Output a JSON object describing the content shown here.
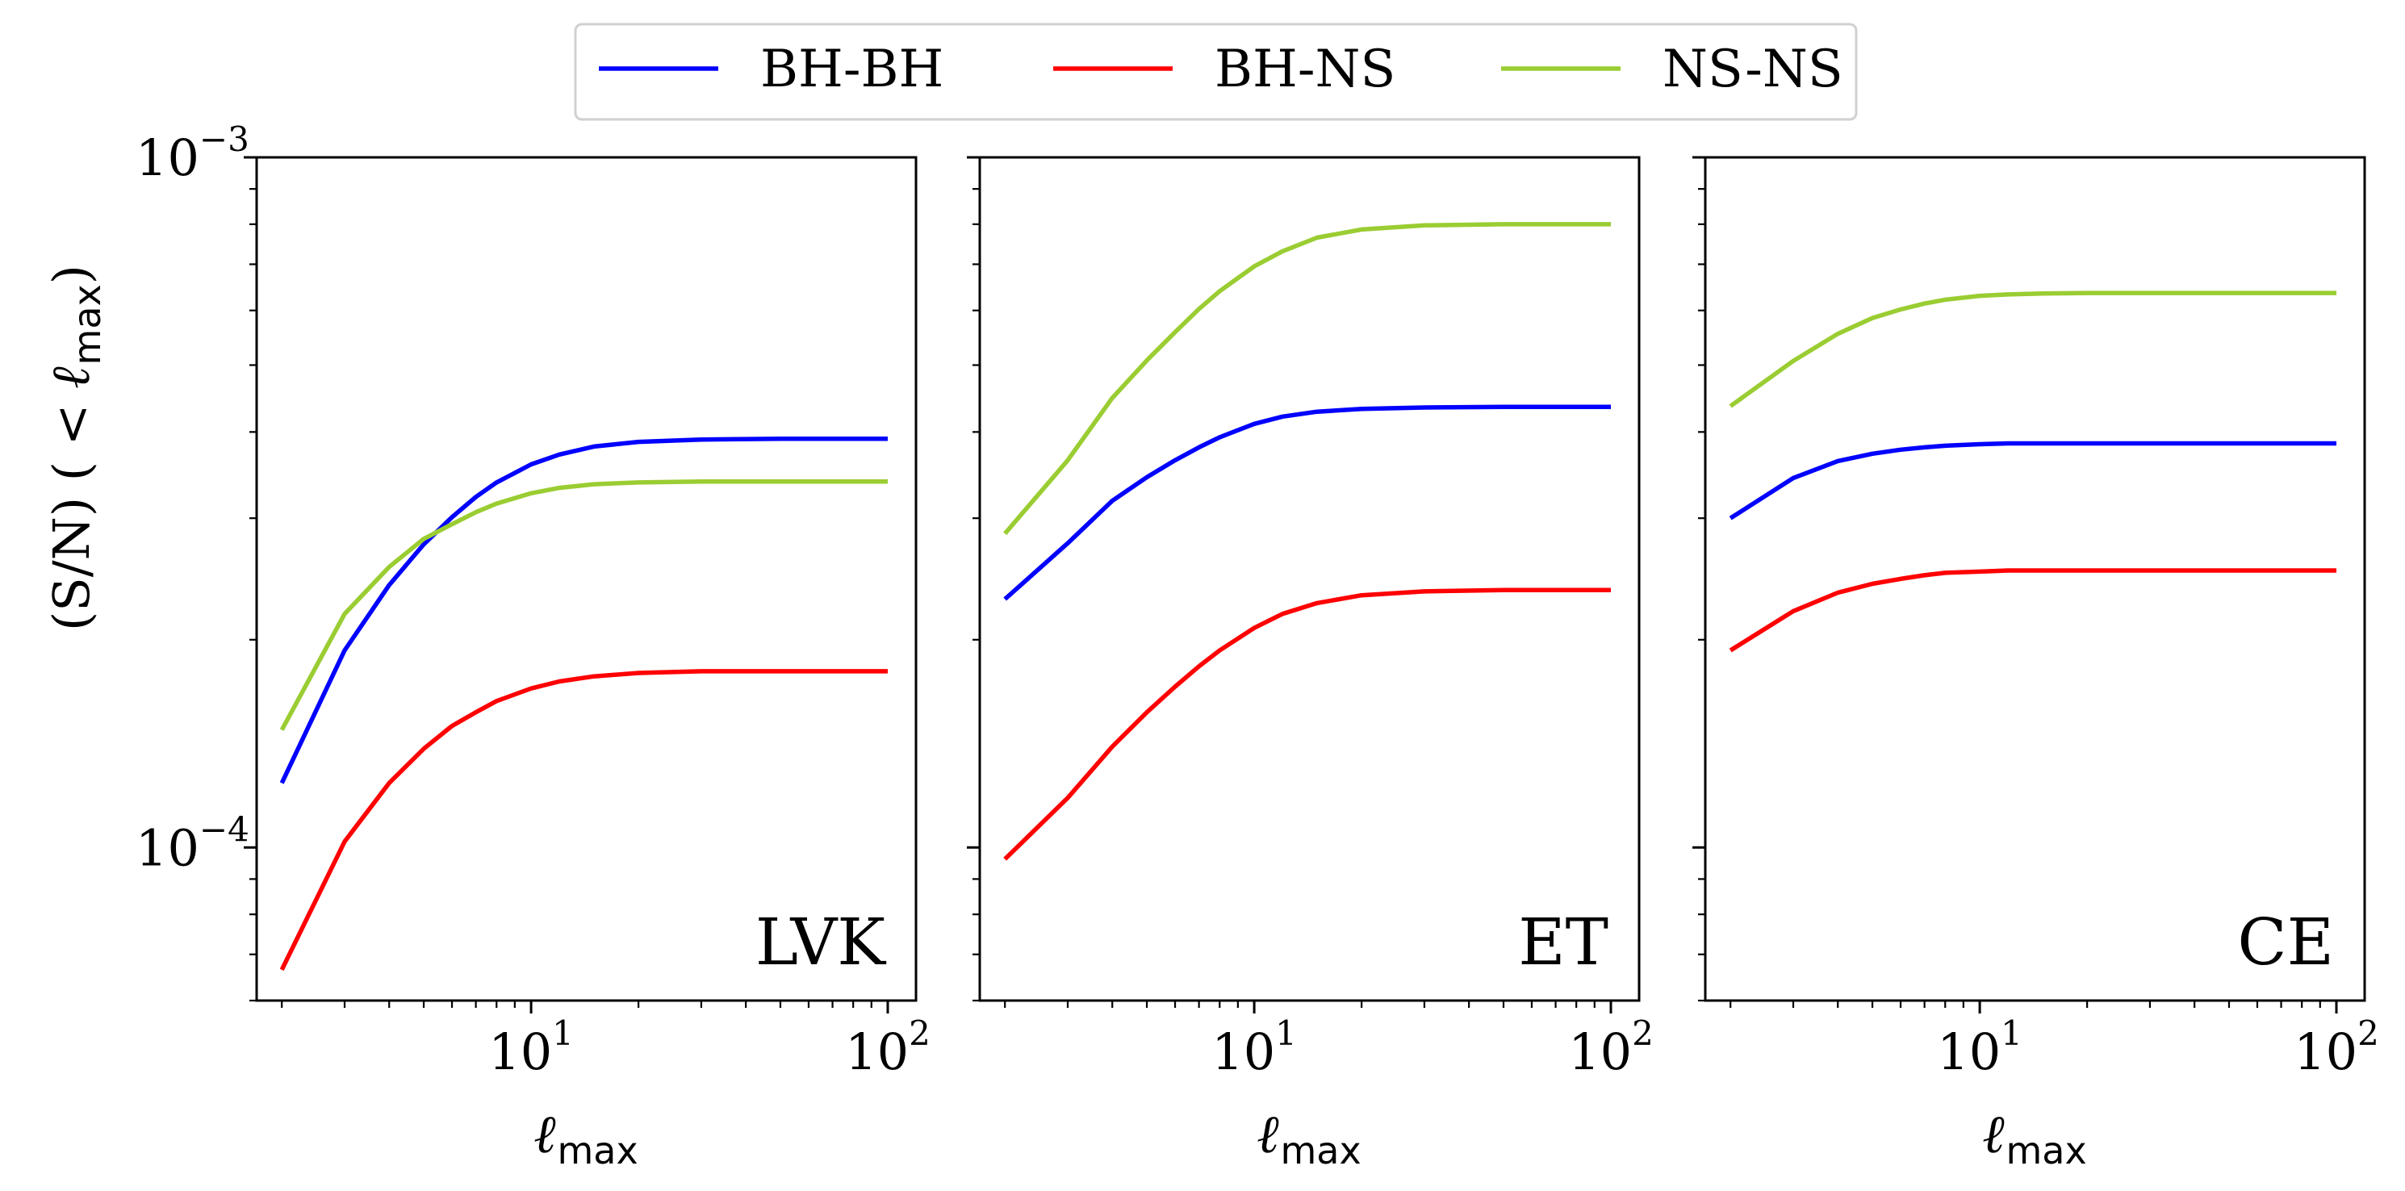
{
  "chart_data": [
    {
      "type": "line",
      "panel_label": "LVK",
      "xscale": "log",
      "yscale": "log",
      "xlim": [
        1.7,
        120
      ],
      "ylim": [
        6e-05,
        0.001
      ],
      "xlabel": "max",
      "ylabel": "(S/N) ( < max)",
      "x": [
        2,
        3,
        4,
        5,
        6,
        7,
        8,
        10,
        12,
        15,
        20,
        30,
        50,
        100
      ],
      "series": [
        {
          "name": "BH-BH",
          "color": "#0000ff",
          "values": [
            0.000124,
            0.000193,
            0.00024,
            0.000275,
            0.000301,
            0.000322,
            0.000338,
            0.000359,
            0.000371,
            0.000381,
            0.000387,
            0.00039,
            0.000391,
            0.000391
          ]
        },
        {
          "name": "BH-NS",
          "color": "#ff0000",
          "values": [
            6.65e-05,
            0.000102,
            0.000124,
            0.000139,
            0.00015,
            0.000157,
            0.000163,
            0.00017,
            0.000174,
            0.000177,
            0.000179,
            0.00018,
            0.00018,
            0.00018
          ]
        },
        {
          "name": "NS-NS",
          "color": "#9acd32",
          "values": [
            0.000148,
            0.000218,
            0.000255,
            0.00028,
            0.000294,
            0.000306,
            0.000315,
            0.000326,
            0.000332,
            0.000336,
            0.000338,
            0.000339,
            0.000339,
            0.000339
          ]
        }
      ]
    },
    {
      "type": "line",
      "panel_label": "ET",
      "xscale": "log",
      "yscale": "log",
      "xlim": [
        1.7,
        120
      ],
      "ylim": [
        6e-05,
        0.001
      ],
      "xlabel": "max",
      "x": [
        2,
        3,
        4,
        5,
        6,
        7,
        8,
        10,
        12,
        15,
        20,
        30,
        50,
        100
      ],
      "series": [
        {
          "name": "BH-BH",
          "color": "#0000ff",
          "values": [
            0.000229,
            0.000276,
            0.000318,
            0.000344,
            0.000364,
            0.00038,
            0.000393,
            0.000411,
            0.000421,
            0.000428,
            0.000432,
            0.000434,
            0.000435,
            0.000435
          ]
        },
        {
          "name": "BH-NS",
          "color": "#ff0000",
          "values": [
            9.62e-05,
            0.000118,
            0.00014,
            0.000157,
            0.000171,
            0.000183,
            0.000193,
            0.000208,
            0.000218,
            0.000226,
            0.000232,
            0.000235,
            0.000236,
            0.000236
          ]
        },
        {
          "name": "NS-NS",
          "color": "#9acd32",
          "values": [
            0.000285,
            0.000364,
            0.000448,
            0.000508,
            0.000558,
            0.000603,
            0.00064,
            0.000695,
            0.000731,
            0.000765,
            0.000786,
            0.000797,
            0.0008,
            0.0008
          ]
        }
      ]
    },
    {
      "type": "line",
      "panel_label": "CE",
      "xscale": "log",
      "yscale": "log",
      "xlim": [
        1.7,
        120
      ],
      "ylim": [
        6e-05,
        0.001
      ],
      "xlabel": "max",
      "x": [
        2,
        3,
        4,
        5,
        6,
        7,
        8,
        10,
        12,
        15,
        20,
        30,
        50,
        100
      ],
      "series": [
        {
          "name": "BH-BH",
          "color": "#0000ff",
          "values": [
            0.0003,
            0.000343,
            0.000363,
            0.000372,
            0.000377,
            0.00038,
            0.000382,
            0.000384,
            0.000385,
            0.000385,
            0.000385,
            0.000385,
            0.000385,
            0.000385
          ]
        },
        {
          "name": "BH-NS",
          "color": "#ff0000",
          "values": [
            0.000193,
            0.00022,
            0.000234,
            0.000241,
            0.000245,
            0.000248,
            0.00025,
            0.000251,
            0.000252,
            0.000252,
            0.000252,
            0.000252,
            0.000252,
            0.000252
          ]
        },
        {
          "name": "NS-NS",
          "color": "#9acd32",
          "values": [
            0.000436,
            0.000507,
            0.000555,
            0.000585,
            0.000602,
            0.000614,
            0.000622,
            0.00063,
            0.000633,
            0.000635,
            0.000636,
            0.000636,
            0.000636,
            0.000636
          ]
        }
      ]
    }
  ],
  "legend": [
    {
      "name": "BH-BH",
      "color": "#0000ff"
    },
    {
      "name": "BH-NS",
      "color": "#ff0000"
    },
    {
      "name": "NS-NS",
      "color": "#9acd32"
    }
  ],
  "y_ticks": [
    {
      "base": "10",
      "exp": "−4",
      "value": 0.0001
    },
    {
      "base": "10",
      "exp": "−3",
      "value": 0.001
    }
  ],
  "x_ticks": [
    {
      "base": "10",
      "exp": "1",
      "value": 10
    },
    {
      "base": "10",
      "exp": "2",
      "value": 100
    }
  ],
  "axis_text": {
    "ell": "ℓ",
    "max_sub": "max",
    "ylabel_prefix": "(S/N) ( < ",
    "ylabel_suffix": ")"
  }
}
